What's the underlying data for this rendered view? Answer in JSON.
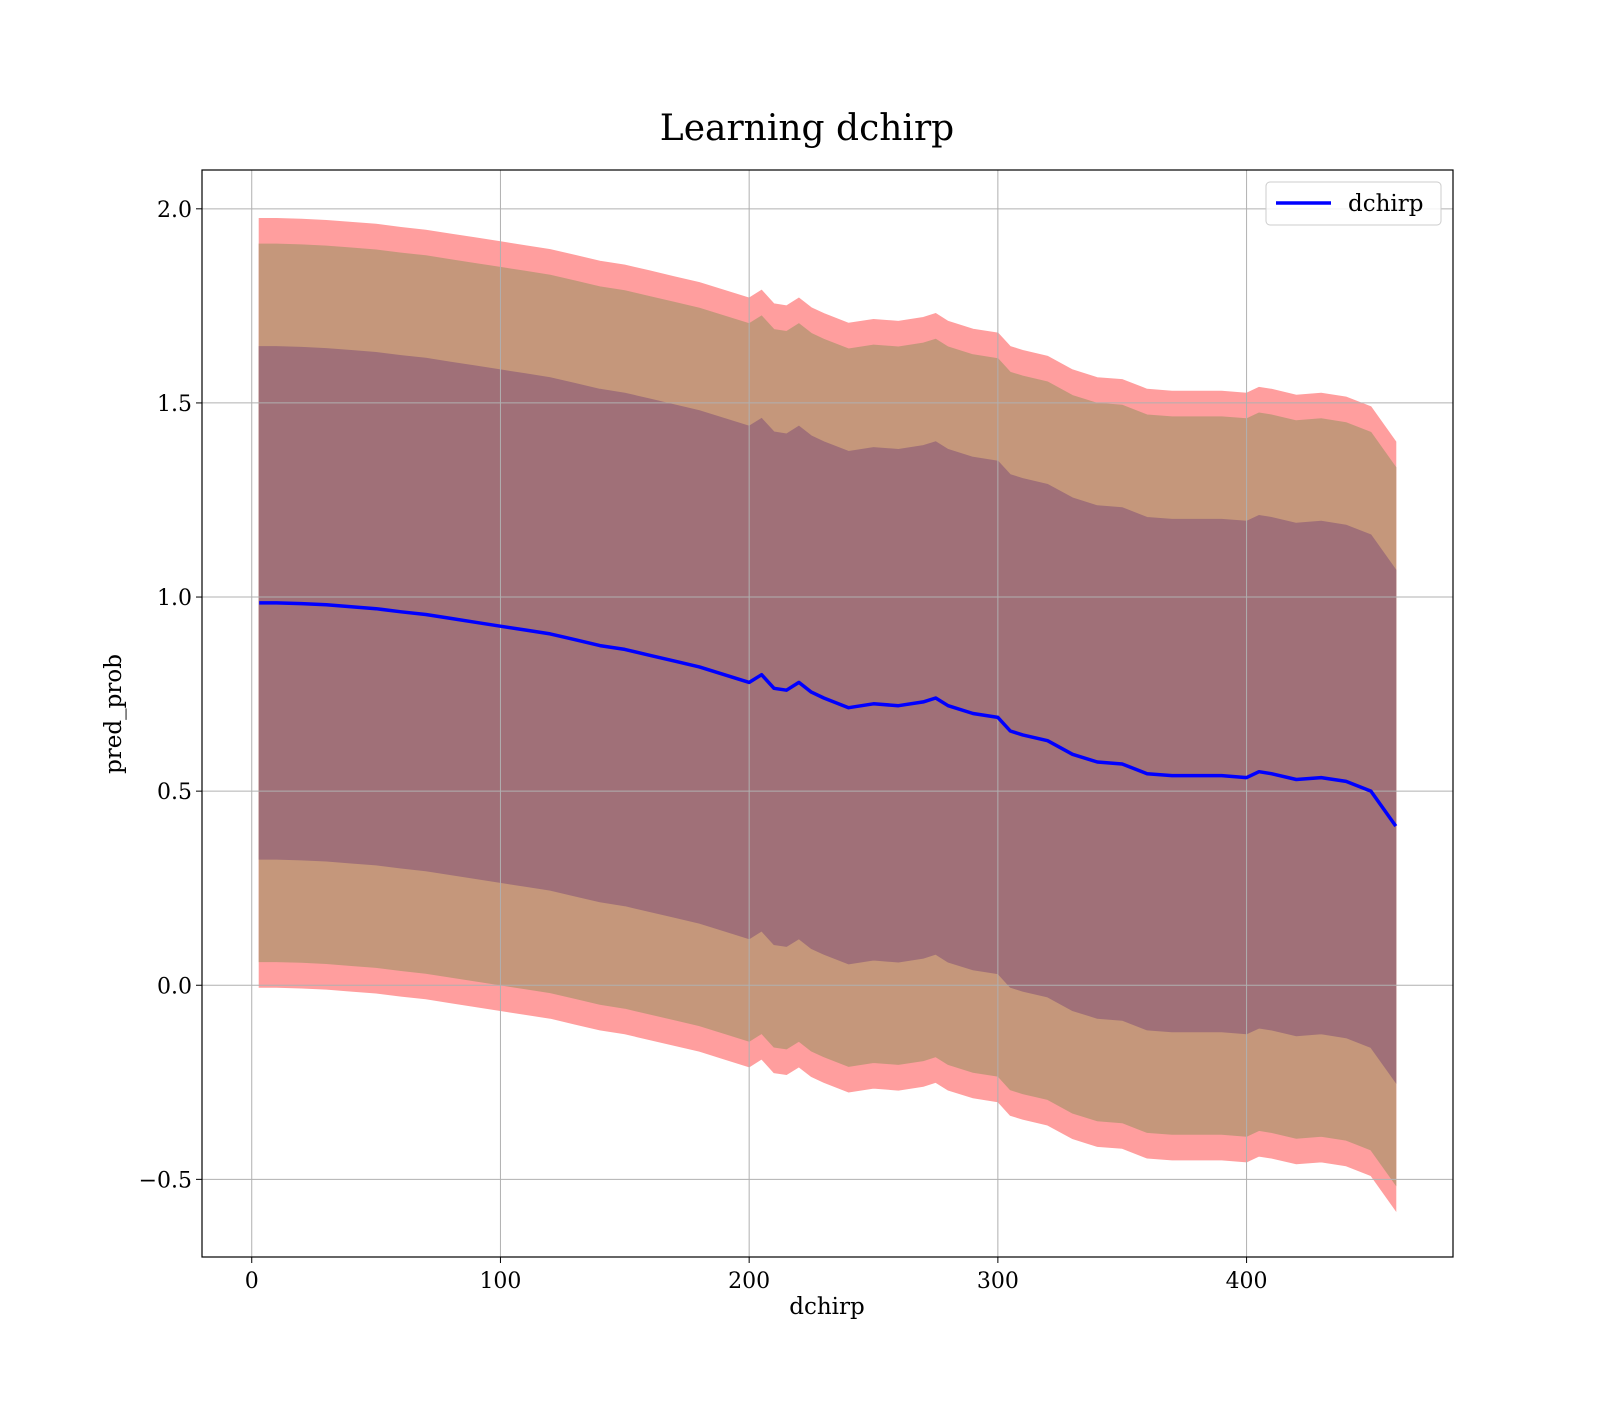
{
  "chart_data": {
    "type": "area",
    "title": "Learning dchirp",
    "xlabel": "dchirp",
    "ylabel": "pred_prob",
    "xlim": [
      -20,
      483
    ],
    "ylim": [
      -0.7,
      2.1
    ],
    "xticks": [
      0,
      100,
      200,
      300,
      400
    ],
    "yticks": [
      -0.5,
      0.0,
      0.5,
      1.0,
      1.5,
      2.0
    ],
    "xtick_labels": [
      "0",
      "100",
      "200",
      "300",
      "400"
    ],
    "ytick_labels": [
      "−0.5",
      "0.0",
      "0.5",
      "1.0",
      "1.5",
      "2.0"
    ],
    "grid": true,
    "legend": {
      "position": "top-right",
      "entries": [
        "dchirp"
      ]
    },
    "colors": {
      "line": "#0000ff",
      "outer_band": "#ff9e9e",
      "middle_band": "#c5977b",
      "inner_band": "#a07078",
      "grid": "#b0b0b0"
    },
    "bands": [
      {
        "label": "",
        "std_multiple": 3,
        "color_key": "outer_band"
      },
      {
        "label": "",
        "std_multiple": 2.8,
        "color_key": "middle_band"
      },
      {
        "label": "",
        "std_multiple": 2,
        "color_key": "inner_band"
      }
    ],
    "series": [
      {
        "name": "dchirp",
        "x": [
          3,
          10,
          20,
          30,
          40,
          50,
          60,
          70,
          80,
          90,
          100,
          110,
          120,
          130,
          140,
          150,
          160,
          170,
          180,
          190,
          200,
          205,
          210,
          215,
          220,
          225,
          230,
          240,
          250,
          260,
          270,
          275,
          280,
          290,
          300,
          305,
          310,
          320,
          330,
          340,
          350,
          360,
          370,
          380,
          390,
          400,
          405,
          410,
          420,
          430,
          440,
          450,
          460
        ],
        "y": [
          0.985,
          0.985,
          0.983,
          0.98,
          0.975,
          0.97,
          0.962,
          0.955,
          0.945,
          0.935,
          0.925,
          0.915,
          0.905,
          0.89,
          0.875,
          0.865,
          0.85,
          0.835,
          0.82,
          0.8,
          0.78,
          0.8,
          0.765,
          0.76,
          0.78,
          0.755,
          0.74,
          0.715,
          0.725,
          0.72,
          0.73,
          0.74,
          0.72,
          0.7,
          0.69,
          0.655,
          0.645,
          0.63,
          0.595,
          0.575,
          0.57,
          0.545,
          0.54,
          0.54,
          0.54,
          0.535,
          0.55,
          0.545,
          0.53,
          0.535,
          0.525,
          0.5,
          0.41
        ],
        "std": [
          0.33,
          0.33,
          0.33,
          0.33,
          0.33,
          0.33,
          0.33,
          0.33,
          0.33,
          0.33,
          0.33,
          0.33,
          0.33,
          0.33,
          0.33,
          0.33,
          0.33,
          0.33,
          0.33,
          0.33,
          0.33,
          0.33,
          0.33,
          0.33,
          0.33,
          0.33,
          0.33,
          0.33,
          0.33,
          0.33,
          0.33,
          0.33,
          0.33,
          0.33,
          0.33,
          0.33,
          0.33,
          0.33,
          0.33,
          0.33,
          0.33,
          0.33,
          0.33,
          0.33,
          0.33,
          0.33,
          0.33,
          0.33,
          0.33,
          0.33,
          0.33,
          0.33,
          0.33
        ]
      }
    ]
  }
}
